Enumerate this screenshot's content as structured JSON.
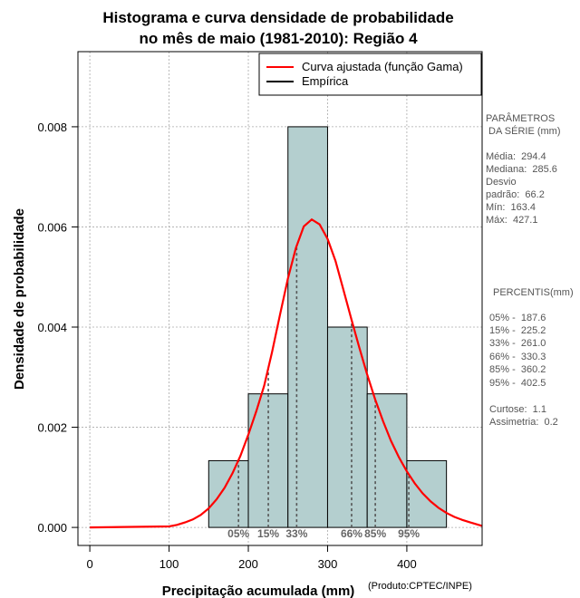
{
  "chart_data": {
    "type": "histogram",
    "title": [
      "Histograma e curva densidade de probabilidade",
      "no mês de maio (1981-2010): Região 4"
    ],
    "xlabel": "Precipitação acumulada (mm)",
    "ylabel": "Densidade de probabilidade",
    "credit": "(Produto:CPTEC/INPE)",
    "xlim": [
      -15,
      495
    ],
    "ylim": [
      -0.00036,
      0.0095
    ],
    "x_ticks": [
      0,
      100,
      200,
      300,
      400
    ],
    "x_tick_labels": [
      "0",
      "100",
      "200",
      "300",
      "400"
    ],
    "y_ticks": [
      0,
      0.002,
      0.004,
      0.006,
      0.008
    ],
    "y_tick_labels": [
      "0.000",
      "0.002",
      "0.004",
      "0.006",
      "0.008"
    ],
    "grid": true,
    "bins": [
      {
        "start": 150,
        "end": 200,
        "density": 0.001333
      },
      {
        "start": 200,
        "end": 250,
        "density": 0.002667
      },
      {
        "start": 250,
        "end": 300,
        "density": 0.008
      },
      {
        "start": 300,
        "end": 350,
        "density": 0.004
      },
      {
        "start": 350,
        "end": 400,
        "density": 0.002667
      },
      {
        "start": 400,
        "end": 450,
        "density": 0.001333
      }
    ],
    "fitted_curve": {
      "name": "Curva ajustada (função Gama)",
      "color": "#ff0000",
      "x": [
        0,
        100,
        110,
        120,
        130,
        140,
        150,
        160,
        170,
        180,
        190,
        200,
        210,
        220,
        230,
        240,
        250,
        260,
        270,
        280,
        290,
        300,
        310,
        320,
        330,
        340,
        350,
        360,
        370,
        380,
        390,
        400,
        410,
        420,
        430,
        440,
        450,
        460,
        470,
        480,
        495
      ],
      "y": [
        0,
        2e-05,
        5e-05,
        0.0001,
        0.00016,
        0.00025,
        0.00038,
        0.00056,
        0.00079,
        0.00108,
        0.00143,
        0.00185,
        0.00232,
        0.00283,
        0.00351,
        0.00425,
        0.00497,
        0.00558,
        0.00601,
        0.00615,
        0.00605,
        0.00576,
        0.00532,
        0.00474,
        0.00416,
        0.00359,
        0.00305,
        0.00256,
        0.00212,
        0.00173,
        0.0014,
        0.00112,
        0.00088,
        0.00068,
        0.00052,
        0.00039,
        0.00029,
        0.00021,
        0.00015,
        0.0001,
        3e-05
      ]
    },
    "empirical": {
      "name": "Empírica",
      "color": "#000000"
    },
    "percentiles": [
      {
        "label": "05%",
        "value": 187.6
      },
      {
        "label": "15%",
        "value": 225.2
      },
      {
        "label": "33%",
        "value": 261.0
      },
      {
        "label": "66%",
        "value": 330.3
      },
      {
        "label": "85%",
        "value": 360.2
      },
      {
        "label": "95%",
        "value": 402.5
      }
    ],
    "colors": {
      "bar_fill": "#b4cfcf",
      "bar_stroke": "#000000",
      "grid": "#aaaaaa",
      "percentile_line": "#555555"
    }
  },
  "side_panel": {
    "params_title": [
      "PARÂMETROS",
      " DA SÉRIE (mm)"
    ],
    "params": [
      "Média:  294.4",
      "Mediana:  285.6",
      "Desvio",
      "padrão:  66.2",
      "Mín:  163.4",
      "Máx:  427.1"
    ],
    "percentiles_title": "PERCENTIS(mm)",
    "percentiles": [
      "05% -  187.6",
      "15% -  225.2",
      "33% -  261.0",
      "66% -  330.3",
      "85% -  360.2",
      "95% -  402.5"
    ],
    "stats": [
      "Curtose:  1.1",
      "Assimetria:  0.2"
    ]
  }
}
